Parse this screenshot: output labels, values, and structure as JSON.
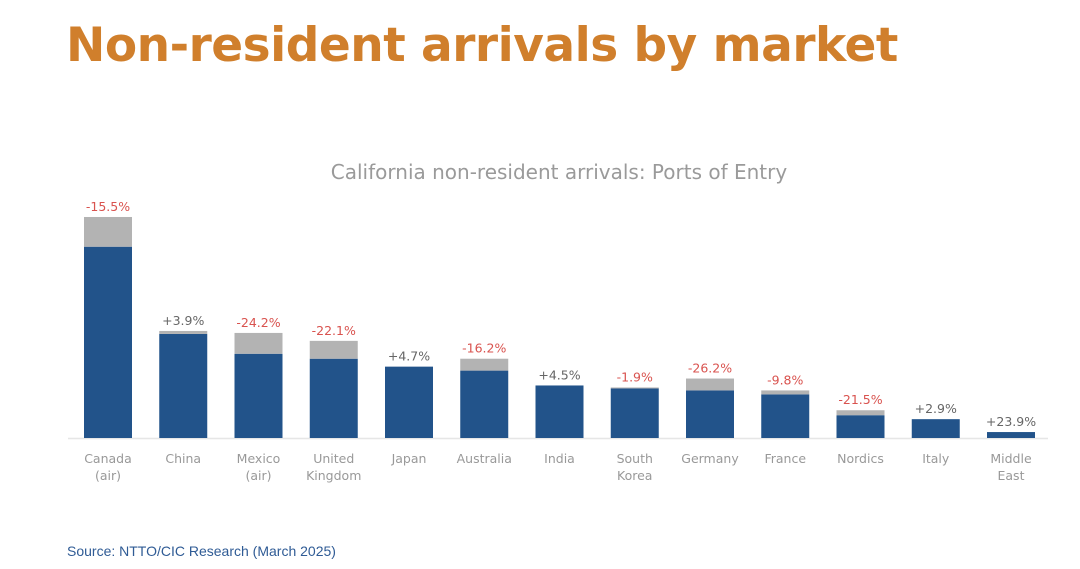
{
  "page": {
    "title": "Non-resident arrivals by market",
    "source": "Source: NTTO/CIC Research (March 2025)"
  },
  "colors": {
    "title": "#d07f2c",
    "bar_current": "#22538a",
    "bar_decline": "#b3b3b3",
    "change_negative": "#d9534f",
    "change_positive": "#666666",
    "axis": "#e6e6e6",
    "labels": "#999999",
    "source": "#2f5b95"
  },
  "chart_data": {
    "type": "bar",
    "title": "California non-resident arrivals: Ports of Entry",
    "xlabel": "",
    "ylabel": "",
    "stacked": true,
    "categories": [
      [
        "Canada",
        "(air)"
      ],
      [
        "China"
      ],
      [
        "Mexico",
        "(air)"
      ],
      [
        "United",
        "Kingdom"
      ],
      [
        "Japan"
      ],
      [
        "Australia"
      ],
      [
        "India"
      ],
      [
        "South",
        "Korea"
      ],
      [
        "Germany"
      ],
      [
        "France"
      ],
      [
        "Nordics"
      ],
      [
        "Italy"
      ],
      [
        "Middle",
        "East"
      ]
    ],
    "series": [
      {
        "values": [
          193,
          105,
          85,
          80,
          72,
          68,
          53,
          50,
          48,
          44,
          23,
          19,
          6
        ]
      },
      {
        "values": [
          30,
          3,
          21,
          18,
          0,
          12,
          0,
          1,
          12,
          4,
          5,
          0,
          0
        ]
      }
    ],
    "data_labels": [
      "-15.5%",
      "+3.9%",
      "-24.2%",
      "-22.1%",
      "+4.7%",
      "-16.2%",
      "+4.5%",
      "-1.9%",
      "-26.2%",
      "-9.8%",
      "-21.5%",
      "+2.9%",
      "+23.9%"
    ],
    "ylim": [
      0,
      225
    ],
    "grid": false
  }
}
